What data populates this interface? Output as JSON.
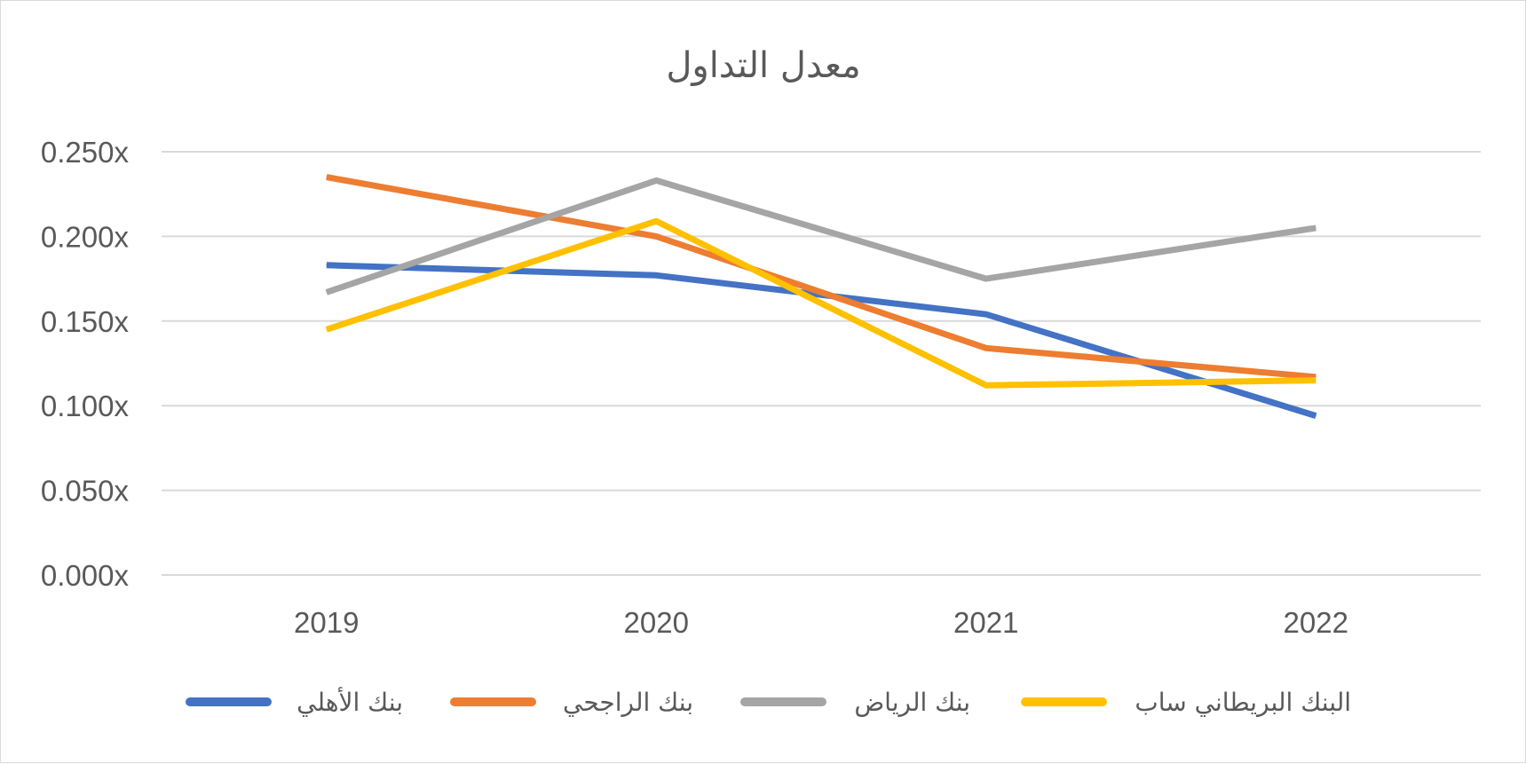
{
  "chart_data": {
    "type": "line",
    "title": "معدل التداول",
    "xlabel": "",
    "ylabel": "",
    "categories": [
      "2019",
      "2020",
      "2021",
      "2022"
    ],
    "ylim": [
      0,
      0.25
    ],
    "yticks": [
      0,
      0.05,
      0.1,
      0.15,
      0.2,
      0.25
    ],
    "ytick_labels": [
      "0.000x",
      "0.050x",
      "0.100x",
      "0.150x",
      "0.200x",
      "0.250x"
    ],
    "grid": true,
    "legend_position": "bottom",
    "series": [
      {
        "name": "بنك الأهلي",
        "color": "#4472c4",
        "values": [
          0.183,
          0.177,
          0.154,
          0.094
        ]
      },
      {
        "name": "بنك الراجحي",
        "color": "#ed7d31",
        "values": [
          0.235,
          0.2,
          0.134,
          0.117
        ]
      },
      {
        "name": "بنك الرياض",
        "color": "#a5a5a5",
        "values": [
          0.167,
          0.233,
          0.175,
          0.205
        ]
      },
      {
        "name": "البنك البريطاني ساب",
        "color": "#ffc000",
        "values": [
          0.145,
          0.209,
          0.112,
          0.115
        ]
      }
    ]
  }
}
